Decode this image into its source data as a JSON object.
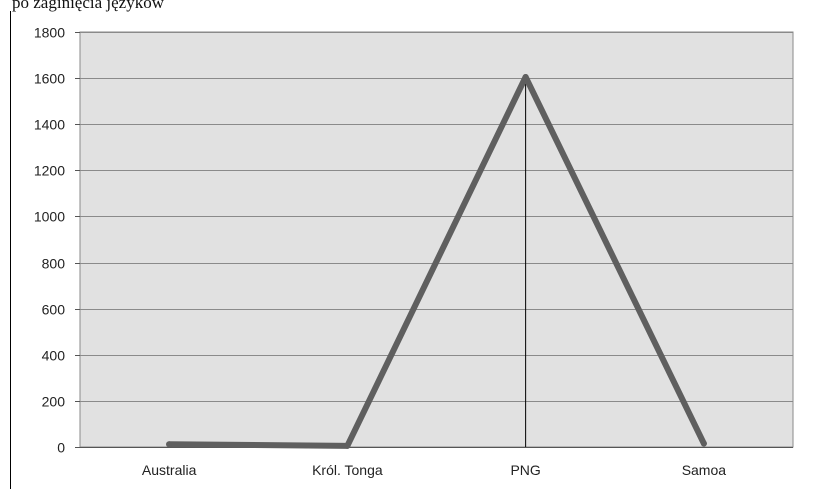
{
  "top_text_fragment": "po zaginięcia języków",
  "chart_data": {
    "type": "line",
    "title": "",
    "xlabel": "",
    "ylabel": "",
    "categories": [
      "Australia",
      "Król. Tonga",
      "PNG",
      "Samoa"
    ],
    "series": [
      {
        "values": [
          12,
          5,
          1605,
          15
        ],
        "color": "#5f5f5f"
      }
    ],
    "ylim": [
      0,
      1800
    ],
    "yticks": [
      0,
      200,
      400,
      600,
      800,
      1000,
      1200,
      1400,
      1600,
      1800
    ],
    "grid": true,
    "legend": "none",
    "plot_background": "#e1e1e1",
    "grid_color": "#8a8a8a"
  }
}
